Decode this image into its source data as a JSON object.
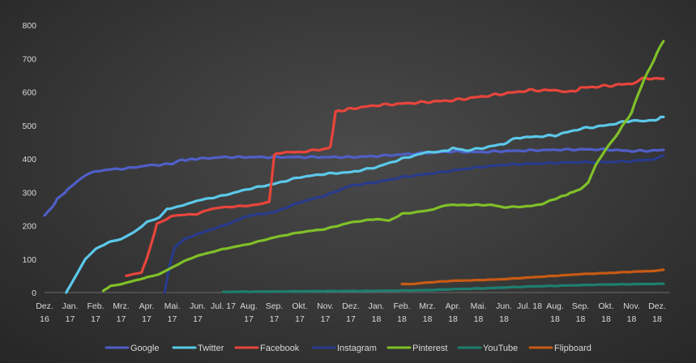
{
  "chart_data": {
    "type": "line",
    "title": "",
    "xlabel": "",
    "ylabel": "",
    "ylim": [
      0,
      800
    ],
    "yticks": [
      "0",
      "100",
      "200",
      "300",
      "400",
      "500",
      "600",
      "700",
      "800"
    ],
    "grid": false,
    "legend_position": "bottom",
    "categories": [
      [
        "Dez.",
        "16"
      ],
      [
        "Jan.",
        "17"
      ],
      [
        "Feb.",
        "17"
      ],
      [
        "Mrz.",
        "17"
      ],
      [
        "Apr.",
        "17"
      ],
      [
        "Mai.",
        "17"
      ],
      [
        "Jun.",
        "17"
      ],
      [
        "Jul. 17",
        ""
      ],
      [
        "Aug.",
        "17"
      ],
      [
        "Sep.",
        "17"
      ],
      [
        "Okt.",
        "17"
      ],
      [
        "Nov.",
        "17"
      ],
      [
        "Dez.",
        "17"
      ],
      [
        "Jan.",
        "18"
      ],
      [
        "Feb.",
        "18"
      ],
      [
        "Mrz.",
        "18"
      ],
      [
        "Apr.",
        "18"
      ],
      [
        "Mai.",
        "18"
      ],
      [
        "Jun.",
        "18"
      ],
      [
        "Jul. 18",
        ""
      ],
      [
        "Aug.",
        "18"
      ],
      [
        "Sep.",
        "18"
      ],
      [
        "Okt.",
        "18"
      ],
      [
        "Nov.",
        "18"
      ],
      [
        "Dez.",
        "18"
      ]
    ],
    "series": [
      {
        "name": "Google",
        "color": "#4f5fc7",
        "points": [
          [
            0,
            230
          ],
          [
            0.1,
            240
          ],
          [
            0.3,
            255
          ],
          [
            0.5,
            280
          ],
          [
            0.8,
            300
          ],
          [
            1.0,
            315
          ],
          [
            1.3,
            335
          ],
          [
            1.6,
            350
          ],
          [
            2.0,
            362
          ],
          [
            2.5,
            368
          ],
          [
            3.0,
            370
          ],
          [
            3.5,
            374
          ],
          [
            4.0,
            380
          ],
          [
            4.5,
            382
          ],
          [
            5.0,
            385
          ],
          [
            5.3,
            395
          ],
          [
            6.0,
            400
          ],
          [
            7.0,
            405
          ],
          [
            8.0,
            405
          ],
          [
            9.0,
            405
          ],
          [
            10.0,
            405
          ],
          [
            11.0,
            405
          ],
          [
            12.0,
            405
          ],
          [
            13.0,
            408
          ],
          [
            14.0,
            413
          ],
          [
            15.0,
            418
          ],
          [
            16.0,
            422
          ],
          [
            17.0,
            420
          ],
          [
            18.0,
            423
          ],
          [
            19.0,
            425
          ],
          [
            20.0,
            427
          ],
          [
            21.0,
            428
          ],
          [
            22.0,
            428
          ],
          [
            23.0,
            423
          ],
          [
            24.0,
            425
          ],
          [
            24.25,
            427
          ]
        ]
      },
      {
        "name": "Twitter",
        "color": "#5bc8ea",
        "points": [
          [
            0.85,
            0
          ],
          [
            1.0,
            20
          ],
          [
            1.3,
            60
          ],
          [
            1.6,
            100
          ],
          [
            2.0,
            130
          ],
          [
            2.5,
            150
          ],
          [
            3.0,
            160
          ],
          [
            3.5,
            180
          ],
          [
            4.0,
            210
          ],
          [
            4.5,
            225
          ],
          [
            4.8,
            250
          ],
          [
            5.3,
            258
          ],
          [
            6.0,
            275
          ],
          [
            7.0,
            290
          ],
          [
            8.0,
            310
          ],
          [
            9.0,
            325
          ],
          [
            10.0,
            345
          ],
          [
            11.0,
            355
          ],
          [
            12.0,
            360
          ],
          [
            13.0,
            375
          ],
          [
            14.0,
            400
          ],
          [
            15.0,
            420
          ],
          [
            15.8,
            425
          ],
          [
            16.0,
            432
          ],
          [
            16.5,
            425
          ],
          [
            17.0,
            430
          ],
          [
            18.0,
            445
          ],
          [
            18.5,
            463
          ],
          [
            19.0,
            465
          ],
          [
            20.0,
            470
          ],
          [
            21.0,
            490
          ],
          [
            22.0,
            500
          ],
          [
            23.0,
            515
          ],
          [
            23.8,
            513
          ],
          [
            24.25,
            525
          ]
        ]
      },
      {
        "name": "Facebook",
        "color": "#e8453c",
        "points": [
          [
            3.2,
            50
          ],
          [
            3.8,
            60
          ],
          [
            4.0,
            100
          ],
          [
            4.2,
            150
          ],
          [
            4.4,
            205
          ],
          [
            4.8,
            220
          ],
          [
            5.0,
            230
          ],
          [
            6.0,
            235
          ],
          [
            6.5,
            250
          ],
          [
            7.0,
            255
          ],
          [
            8.0,
            260
          ],
          [
            8.8,
            270
          ],
          [
            9.0,
            410
          ],
          [
            9.1,
            418
          ],
          [
            10.0,
            420
          ],
          [
            10.5,
            425
          ],
          [
            11.0,
            430
          ],
          [
            11.2,
            435
          ],
          [
            11.4,
            540
          ],
          [
            12.0,
            550
          ],
          [
            13.0,
            560
          ],
          [
            14.0,
            565
          ],
          [
            15.0,
            570
          ],
          [
            16.0,
            575
          ],
          [
            17.0,
            585
          ],
          [
            18.0,
            595
          ],
          [
            19.0,
            605
          ],
          [
            20.0,
            605
          ],
          [
            20.8,
            602
          ],
          [
            21.0,
            612
          ],
          [
            22.0,
            618
          ],
          [
            23.0,
            625
          ],
          [
            23.4,
            640
          ],
          [
            24.25,
            640
          ]
        ]
      },
      {
        "name": "Instagram",
        "color": "#283b8c",
        "points": [
          [
            4.7,
            0
          ],
          [
            4.9,
            80
          ],
          [
            5.1,
            135
          ],
          [
            5.5,
            160
          ],
          [
            6.0,
            175
          ],
          [
            7.0,
            200
          ],
          [
            8.0,
            230
          ],
          [
            9.0,
            240
          ],
          [
            10.0,
            270
          ],
          [
            11.0,
            290
          ],
          [
            12.0,
            320
          ],
          [
            13.0,
            330
          ],
          [
            14.0,
            345
          ],
          [
            15.0,
            355
          ],
          [
            16.0,
            365
          ],
          [
            17.0,
            375
          ],
          [
            18.0,
            382
          ],
          [
            19.0,
            385
          ],
          [
            20.0,
            388
          ],
          [
            21.0,
            390
          ],
          [
            22.0,
            390
          ],
          [
            23.0,
            393
          ],
          [
            24.0,
            400
          ],
          [
            24.25,
            410
          ]
        ]
      },
      {
        "name": "Pinterest",
        "color": "#80c028",
        "points": [
          [
            2.3,
            5
          ],
          [
            2.6,
            20
          ],
          [
            3.0,
            25
          ],
          [
            3.5,
            35
          ],
          [
            4.0,
            45
          ],
          [
            4.5,
            55
          ],
          [
            5.0,
            75
          ],
          [
            5.5,
            95
          ],
          [
            6.0,
            110
          ],
          [
            7.0,
            130
          ],
          [
            8.0,
            145
          ],
          [
            9.0,
            165
          ],
          [
            10.0,
            180
          ],
          [
            11.0,
            190
          ],
          [
            12.0,
            210
          ],
          [
            13.0,
            220
          ],
          [
            13.5,
            215
          ],
          [
            14.0,
            235
          ],
          [
            15.0,
            245
          ],
          [
            15.5,
            255
          ],
          [
            15.8,
            262
          ],
          [
            16.5,
            262
          ],
          [
            17.5,
            262
          ],
          [
            18.0,
            255
          ],
          [
            19.0,
            258
          ],
          [
            19.5,
            265
          ],
          [
            20.0,
            280
          ],
          [
            20.7,
            300
          ],
          [
            21.0,
            310
          ],
          [
            21.3,
            330
          ],
          [
            21.6,
            380
          ],
          [
            22.0,
            430
          ],
          [
            22.5,
            480
          ],
          [
            23.0,
            540
          ],
          [
            23.5,
            640
          ],
          [
            24.0,
            715
          ],
          [
            24.25,
            752
          ]
        ]
      },
      {
        "name": "YouTube",
        "color": "#1e7f6e",
        "points": [
          [
            7.0,
            2
          ],
          [
            9.0,
            3
          ],
          [
            11.0,
            4
          ],
          [
            13.0,
            5
          ],
          [
            15.0,
            7
          ],
          [
            16.0,
            10
          ],
          [
            17.0,
            12
          ],
          [
            18.0,
            15
          ],
          [
            19.0,
            18
          ],
          [
            20.0,
            20
          ],
          [
            21.0,
            22
          ],
          [
            22.0,
            24
          ],
          [
            23.0,
            25
          ],
          [
            24.25,
            26
          ]
        ]
      },
      {
        "name": "Flipboard",
        "color": "#c85a14",
        "points": [
          [
            14.0,
            25
          ],
          [
            14.5,
            26
          ],
          [
            15.0,
            30
          ],
          [
            16.0,
            35
          ],
          [
            17.0,
            37
          ],
          [
            18.0,
            40
          ],
          [
            19.0,
            45
          ],
          [
            20.0,
            50
          ],
          [
            21.0,
            55
          ],
          [
            22.0,
            58
          ],
          [
            23.0,
            62
          ],
          [
            24.0,
            65
          ],
          [
            24.25,
            68
          ]
        ]
      }
    ]
  }
}
